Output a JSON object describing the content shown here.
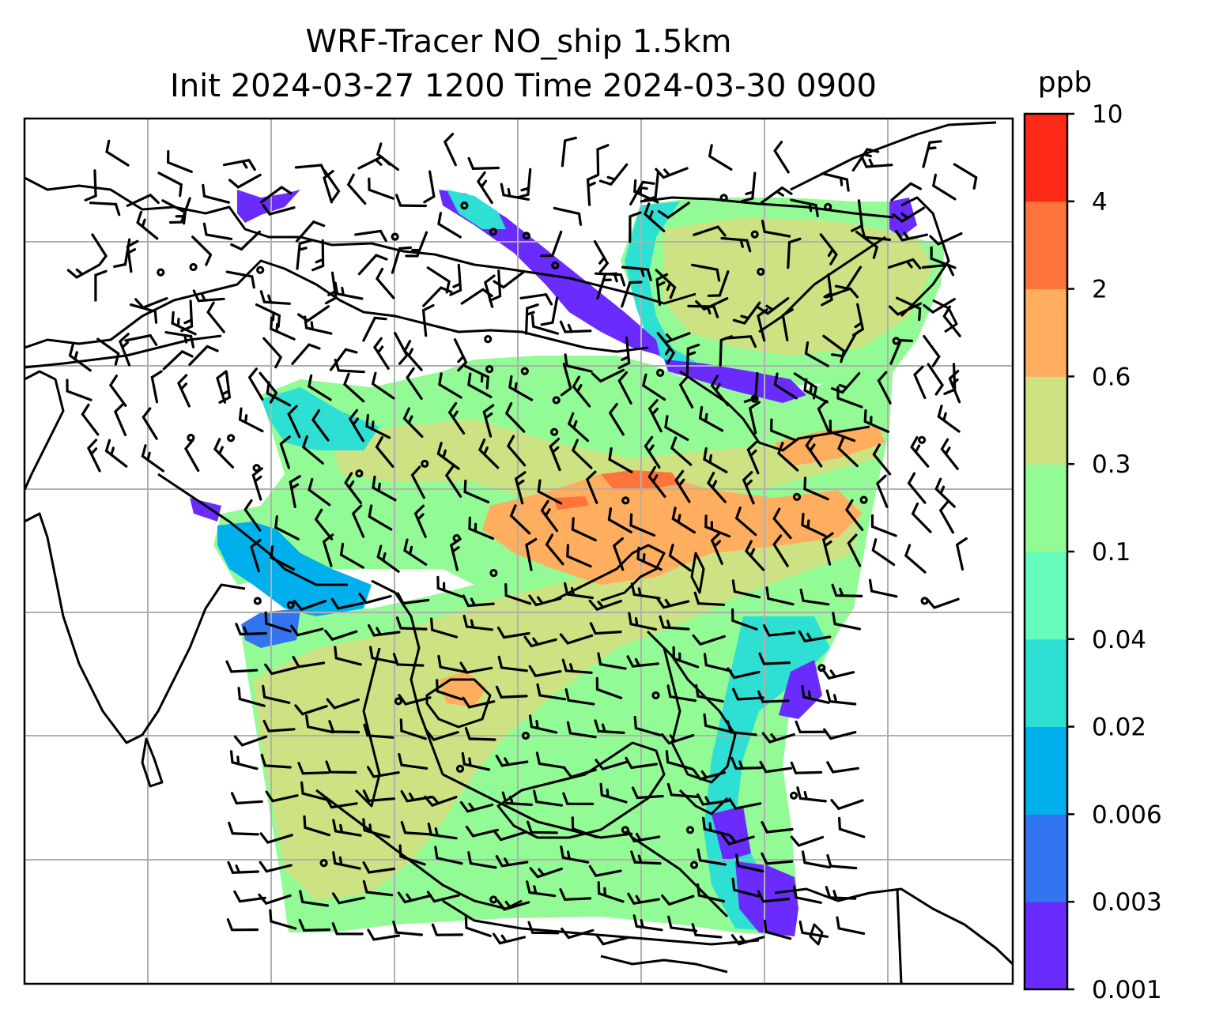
{
  "figure": {
    "title_line1": "WRF-Tracer NO_ship 1.5km",
    "title_line2": "Init 2024-03-27 1200 Time 2024-03-30 0900"
  },
  "colorbar": {
    "unit": "ppb",
    "levels": [
      "0.001",
      "0.003",
      "0.006",
      "0.02",
      "0.04",
      "0.1",
      "0.3",
      "0.6",
      "2",
      "4",
      "10"
    ],
    "colors": [
      "#6a2bff",
      "#3374f0",
      "#00b0ec",
      "#2ee0d4",
      "#66fbba",
      "#93fb96",
      "#cde283",
      "#ffad5e",
      "#ff743b",
      "#ff2a17"
    ]
  },
  "colors": {
    "frame": "#000000",
    "grid": "#b0b0b0",
    "coastline": "#000000",
    "wind_barb": "#000000"
  }
}
